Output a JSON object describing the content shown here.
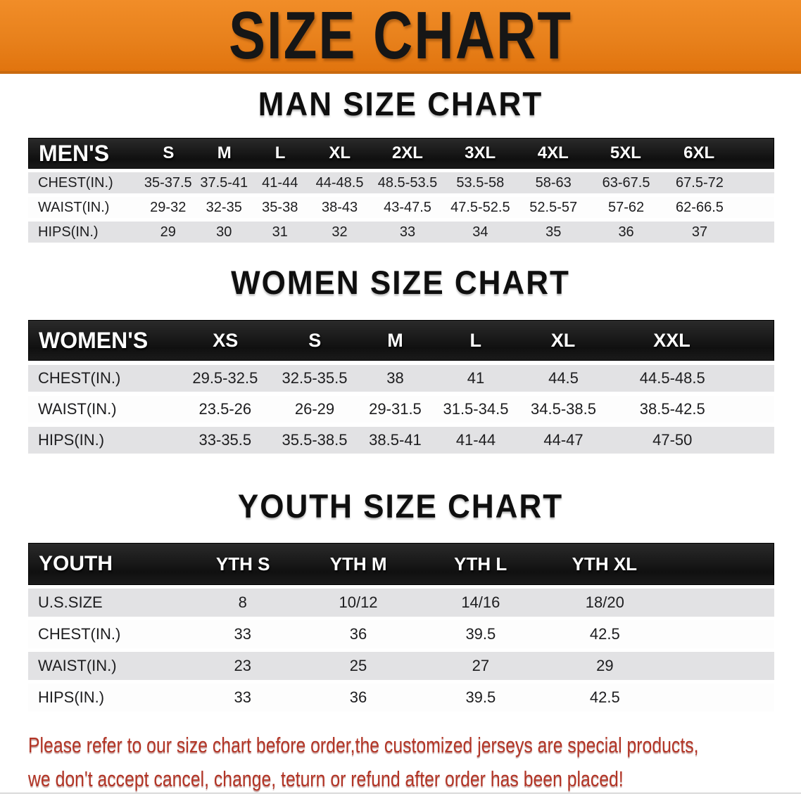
{
  "banner": {
    "title": "SIZE CHART",
    "bg_color": "#e8811c",
    "text_color": "#161616"
  },
  "colors": {
    "header_bar": "#141414",
    "stripe_row": "#e2e2e4",
    "disclaimer_red": "#b23425"
  },
  "sections": [
    {
      "key": "men",
      "title": "MAN SIZE CHART",
      "header_label": "MEN'S",
      "columns": [
        "S",
        "M",
        "L",
        "XL",
        "2XL",
        "3XL",
        "4XL",
        "5XL",
        "6XL"
      ],
      "rows": [
        {
          "label": "CHEST(IN.)",
          "values": [
            "35-37.5",
            "37.5-41",
            "41-44",
            "44-48.5",
            "48.5-53.5",
            "53.5-58",
            "58-63",
            "63-67.5",
            "67.5-72"
          ]
        },
        {
          "label": "WAIST(IN.)",
          "values": [
            "29-32",
            "32-35",
            "35-38",
            "38-43",
            "43-47.5",
            "47.5-52.5",
            "52.5-57",
            "57-62",
            "62-66.5"
          ]
        },
        {
          "label": "HIPS(IN.)",
          "values": [
            "29",
            "30",
            "31",
            "32",
            "33",
            "34",
            "35",
            "36",
            "37"
          ]
        }
      ]
    },
    {
      "key": "women",
      "title": "WOMEN SIZE CHART",
      "header_label": "WOMEN'S",
      "columns": [
        "XS",
        "S",
        "M",
        "L",
        "XL",
        "XXL"
      ],
      "rows": [
        {
          "label": "CHEST(IN.)",
          "values": [
            "29.5-32.5",
            "32.5-35.5",
            "38",
            "41",
            "44.5",
            "44.5-48.5"
          ]
        },
        {
          "label": "WAIST(IN.)",
          "values": [
            "23.5-26",
            "26-29",
            "29-31.5",
            "31.5-34.5",
            "34.5-38.5",
            "38.5-42.5"
          ]
        },
        {
          "label": "HIPS(IN.)",
          "values": [
            "33-35.5",
            "35.5-38.5",
            "38.5-41",
            "41-44",
            "44-47",
            "47-50"
          ]
        }
      ]
    },
    {
      "key": "youth",
      "title": "YOUTH SIZE CHART",
      "header_label": "YOUTH",
      "columns": [
        "YTH S",
        "YTH M",
        "YTH L",
        "YTH XL"
      ],
      "rows": [
        {
          "label": "U.S.SIZE",
          "values": [
            "8",
            "10/12",
            "14/16",
            "18/20"
          ]
        },
        {
          "label": "CHEST(IN.)",
          "values": [
            "33",
            "36",
            "39.5",
            "42.5"
          ]
        },
        {
          "label": "WAIST(IN.)",
          "values": [
            "23",
            "25",
            "27",
            "29"
          ]
        },
        {
          "label": "HIPS(IN.)",
          "values": [
            "33",
            "36",
            "39.5",
            "42.5"
          ]
        }
      ]
    }
  ],
  "disclaimer": {
    "line1": "Please refer to our size chart before order,the customized jerseys are special products,",
    "line2": "we don't accept cancel, change, teturn or refund after order has been placed!"
  }
}
